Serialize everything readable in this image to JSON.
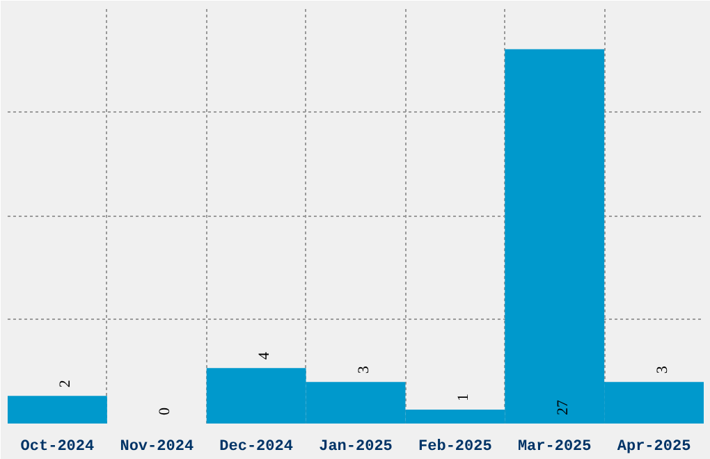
{
  "chart_data": {
    "type": "bar",
    "categories": [
      "Oct-2024",
      "Nov-2024",
      "Dec-2024",
      "Jan-2025",
      "Feb-2025",
      "Mar-2025",
      "Apr-2025"
    ],
    "values": [
      2,
      0,
      4,
      3,
      1,
      27,
      3
    ],
    "color": "#0099cc",
    "ylim": [
      0,
      30
    ],
    "yticks": [
      {
        "value": 0,
        "label": null
      },
      {
        "value": 7.5,
        "label": null
      },
      {
        "value": 15,
        "label": null
      },
      {
        "value": 22.5,
        "label": null
      },
      {
        "value": 30,
        "label": null
      }
    ],
    "tick_labels": "x",
    "grid": true,
    "data_labels": true
  }
}
